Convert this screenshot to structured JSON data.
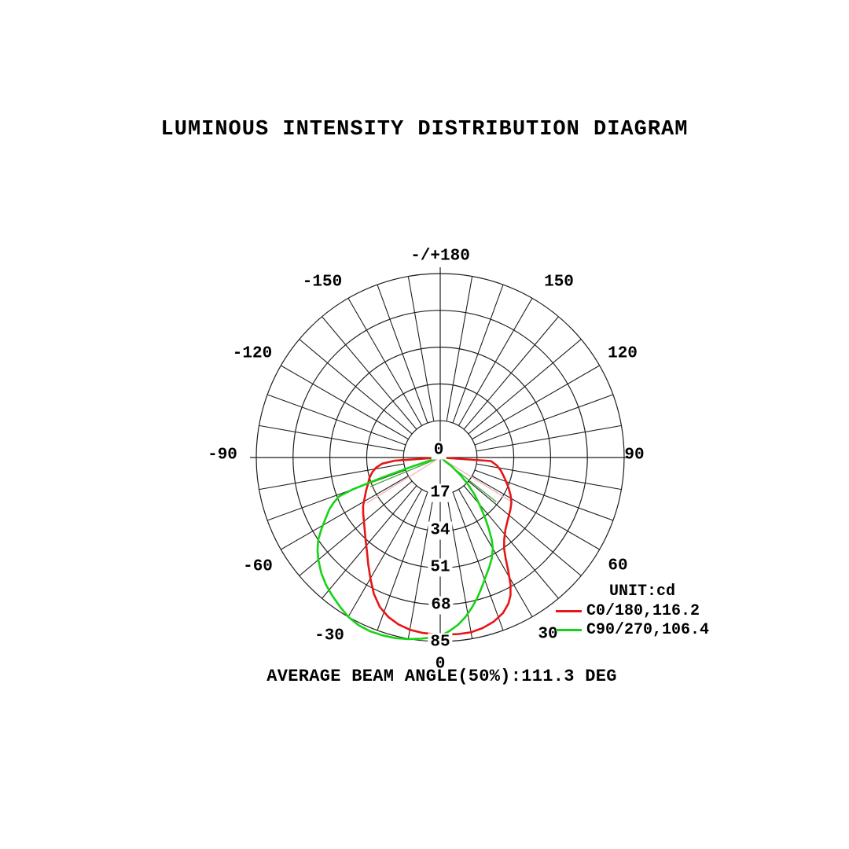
{
  "title": "LUMINOUS INTENSITY DISTRIBUTION DIAGRAM",
  "caption": "AVERAGE BEAM ANGLE(50%):111.3 DEG",
  "legend": {
    "unit_label": "UNIT:cd",
    "entries": [
      {
        "label": "C0/180,116.2",
        "color": "#e81515"
      },
      {
        "label": "C90/270,106.4",
        "color": "#15d415"
      }
    ]
  },
  "chart_data": {
    "type": "line",
    "subtype": "polar-intensity-curve",
    "title": "LUMINOUS INTENSITY DISTRIBUTION DIAGRAM",
    "unit": "cd",
    "orientation": "0-degrees-at-bottom, positive angles to the right, 10-degree grid spokes",
    "angle_grid_step_deg": 10,
    "angle_label_step_deg": 30,
    "angle_labels": [
      "-/+180",
      "-150",
      "-120",
      "-90",
      "-60",
      "-30",
      "0",
      "30",
      "60",
      "90",
      "120",
      "150"
    ],
    "radial_ticks": [
      0,
      17,
      34,
      51,
      68,
      85
    ],
    "r_max_cd": 85,
    "grid_color": "#1f1f1f",
    "average_beam_angle_50pct_deg": 111.3,
    "series": [
      {
        "name": "C0/180",
        "peak_cd_approx": 82,
        "beam_angle_deg": 116.2,
        "color": "#e81515",
        "points": [
          [
            -90,
            0
          ],
          [
            -86,
            21
          ],
          [
            -84,
            27
          ],
          [
            -81,
            30
          ],
          [
            -78,
            32
          ],
          [
            -74,
            34
          ],
          [
            -70,
            35.5
          ],
          [
            -66,
            37.5
          ],
          [
            -62,
            39.5
          ],
          [
            -58,
            42
          ],
          [
            -54,
            44
          ],
          [
            -50,
            46
          ],
          [
            -46,
            48.5
          ],
          [
            -42,
            51.5
          ],
          [
            -38,
            55
          ],
          [
            -34,
            59.5
          ],
          [
            -30,
            64.5
          ],
          [
            -26,
            70
          ],
          [
            -22,
            74.5
          ],
          [
            -18,
            77.5
          ],
          [
            -14,
            79.5
          ],
          [
            -10,
            80.8
          ],
          [
            -6,
            81.4
          ],
          [
            -2,
            81.7
          ],
          [
            2,
            81.9
          ],
          [
            6,
            82
          ],
          [
            10,
            82
          ],
          [
            14,
            81.2
          ],
          [
            18,
            79.8
          ],
          [
            22,
            77.5
          ],
          [
            25,
            74.5
          ],
          [
            27,
            71.5
          ],
          [
            29,
            67
          ],
          [
            31,
            61
          ],
          [
            33,
            55.5
          ],
          [
            35,
            51.5
          ],
          [
            38,
            48
          ],
          [
            42,
            45
          ],
          [
            46,
            43
          ],
          [
            50,
            41.5
          ],
          [
            54,
            40.2
          ],
          [
            58,
            38.8
          ],
          [
            62,
            36.8
          ],
          [
            66,
            34.6
          ],
          [
            70,
            32.4
          ],
          [
            74,
            30.4
          ],
          [
            78,
            28.6
          ],
          [
            82,
            26.4
          ],
          [
            86,
            23.5
          ],
          [
            90,
            0
          ]
        ]
      },
      {
        "name": "C90/270",
        "peak_cd_approx": 86.6,
        "beam_angle_deg": 106.4,
        "color": "#15d415",
        "points": [
          [
            -90,
            0
          ],
          [
            -74,
            4
          ],
          [
            -72,
            14
          ],
          [
            -71,
            28
          ],
          [
            -70,
            43
          ],
          [
            -69,
            50
          ],
          [
            -67,
            53.5
          ],
          [
            -65,
            56.5
          ],
          [
            -62,
            60
          ],
          [
            -59,
            64
          ],
          [
            -56,
            68
          ],
          [
            -53,
            71
          ],
          [
            -50,
            73.5
          ],
          [
            -46,
            76.5
          ],
          [
            -42,
            79
          ],
          [
            -38,
            81
          ],
          [
            -34,
            83
          ],
          [
            -30,
            85
          ],
          [
            -26,
            86.2
          ],
          [
            -22,
            86.6
          ],
          [
            -18,
            86.4
          ],
          [
            -14,
            86
          ],
          [
            -10,
            85.2
          ],
          [
            -6,
            84.2
          ],
          [
            -2,
            83
          ],
          [
            0,
            82.5
          ],
          [
            3,
            80.3
          ],
          [
            6,
            77.8
          ],
          [
            9,
            74.6
          ],
          [
            12,
            70.8
          ],
          [
            15,
            66.8
          ],
          [
            18,
            62.6
          ],
          [
            21,
            58.8
          ],
          [
            24,
            55.6
          ],
          [
            27,
            52.4
          ],
          [
            30,
            48.6
          ],
          [
            32,
            45
          ],
          [
            34,
            40.5
          ],
          [
            36,
            36
          ],
          [
            38,
            31.8
          ],
          [
            40,
            28
          ],
          [
            43,
            23
          ],
          [
            46,
            17.8
          ],
          [
            49,
            12.4
          ],
          [
            52,
            6.8
          ],
          [
            55,
            1.5
          ],
          [
            56,
            0
          ]
        ]
      }
    ],
    "beam_rays": [
      {
        "series": "C0/180",
        "color": "#f0b2b2",
        "rays": [
          [
            -58.2,
            40
          ],
          [
            58.2,
            39
          ]
        ]
      },
      {
        "series": "C90/270",
        "color": "#3fa53f",
        "rays": [
          [
            -67.4,
            35
          ],
          [
            51.7,
            33
          ]
        ]
      }
    ]
  }
}
